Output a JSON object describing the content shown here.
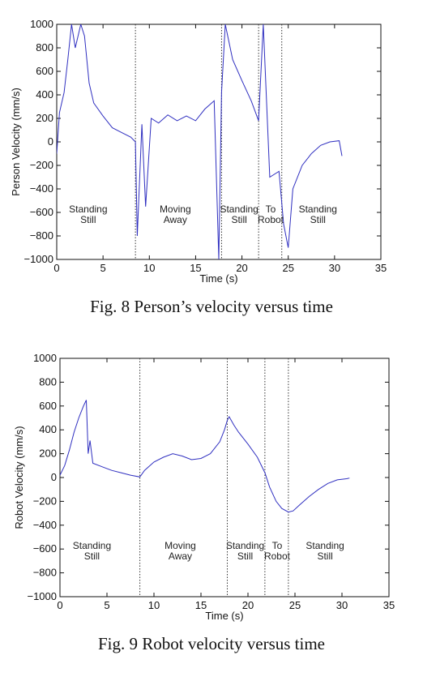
{
  "figures": [
    {
      "caption": "Fig. 8  Person’s velocity versus time",
      "chart_data": {
        "type": "line",
        "title": "",
        "xlabel": "Time (s)",
        "ylabel": "Person Velocity (mm/s)",
        "xlim": [
          0,
          35
        ],
        "ylim": [
          -1000,
          1000
        ],
        "xticks": [
          "0",
          "5",
          "10",
          "15",
          "20",
          "25",
          "30",
          "35"
        ],
        "yticks": [
          "−1000",
          "−800",
          "−600",
          "−400",
          "−200",
          "0",
          "200",
          "400",
          "600",
          "800",
          "1000"
        ],
        "grid": false,
        "line_color": "#2f2fc0",
        "event_lines_x": [
          8.5,
          17.8,
          21.8,
          24.3
        ],
        "regions": [
          {
            "lines": [
              "Standing",
              "Still"
            ],
            "x": 3.4,
            "y": -600
          },
          {
            "lines": [
              "Moving",
              "Away"
            ],
            "x": 12.8,
            "y": -600
          },
          {
            "lines": [
              "Standing",
              "Still"
            ],
            "x": 19.7,
            "y": -600
          },
          {
            "lines": [
              "To",
              "Robot"
            ],
            "x": 23.1,
            "y": -600
          },
          {
            "lines": [
              "Standing",
              "Still"
            ],
            "x": 28.2,
            "y": -600
          }
        ],
        "series": [
          {
            "values": [
              [
                0,
                -100
              ],
              [
                0.3,
                250
              ],
              [
                0.8,
                420
              ],
              [
                1.2,
                700
              ],
              [
                1.6,
                1000
              ],
              [
                2.0,
                800
              ],
              [
                2.6,
                1000
              ],
              [
                3.0,
                900
              ],
              [
                3.5,
                500
              ],
              [
                4.0,
                330
              ],
              [
                5.0,
                220
              ],
              [
                6.0,
                120
              ],
              [
                7.0,
                80
              ],
              [
                8.0,
                40
              ],
              [
                8.5,
                0
              ],
              [
                8.7,
                -800
              ],
              [
                9.2,
                150
              ],
              [
                9.6,
                -550
              ],
              [
                10.2,
                200
              ],
              [
                11.0,
                160
              ],
              [
                12.0,
                230
              ],
              [
                13.0,
                180
              ],
              [
                14.0,
                220
              ],
              [
                15.0,
                180
              ],
              [
                16.0,
                280
              ],
              [
                17.0,
                350
              ],
              [
                17.5,
                -1000
              ],
              [
                17.8,
                420
              ],
              [
                18.2,
                1000
              ],
              [
                19.0,
                700
              ],
              [
                20.0,
                520
              ],
              [
                21.0,
                350
              ],
              [
                21.8,
                180
              ],
              [
                22.3,
                1000
              ],
              [
                23.0,
                -300
              ],
              [
                24.0,
                -250
              ],
              [
                24.5,
                -700
              ],
              [
                25.0,
                -900
              ],
              [
                25.5,
                -400
              ],
              [
                26.5,
                -200
              ],
              [
                27.5,
                -100
              ],
              [
                28.5,
                -30
              ],
              [
                29.5,
                0
              ],
              [
                30.5,
                10
              ],
              [
                30.8,
                -120
              ]
            ]
          }
        ]
      }
    },
    {
      "caption": "Fig. 9  Robot velocity versus time",
      "chart_data": {
        "type": "line",
        "title": "",
        "xlabel": "Time (s)",
        "ylabel": "Robot Velocity (mm/s)",
        "xlim": [
          0,
          35
        ],
        "ylim": [
          -1000,
          1000
        ],
        "xticks": [
          "0",
          "5",
          "10",
          "15",
          "20",
          "25",
          "30",
          "35"
        ],
        "yticks": [
          "−1000",
          "−800",
          "−600",
          "−400",
          "−200",
          "0",
          "200",
          "400",
          "600",
          "800",
          "1000"
        ],
        "grid": false,
        "line_color": "#2f2fc0",
        "event_lines_x": [
          8.5,
          17.8,
          21.8,
          24.3
        ],
        "regions": [
          {
            "lines": [
              "Standing",
              "Still"
            ],
            "x": 3.4,
            "y": -600
          },
          {
            "lines": [
              "Moving",
              "Away"
            ],
            "x": 12.8,
            "y": -600
          },
          {
            "lines": [
              "Standing",
              "Still"
            ],
            "x": 19.7,
            "y": -600
          },
          {
            "lines": [
              "To",
              "Robot"
            ],
            "x": 23.1,
            "y": -600
          },
          {
            "lines": [
              "Standing",
              "Still"
            ],
            "x": 28.2,
            "y": -600
          }
        ],
        "series": [
          {
            "values": [
              [
                0,
                20
              ],
              [
                0.5,
                100
              ],
              [
                1.0,
                230
              ],
              [
                1.5,
                380
              ],
              [
                2.0,
                500
              ],
              [
                2.5,
                600
              ],
              [
                2.8,
                650
              ],
              [
                3.0,
                200
              ],
              [
                3.2,
                310
              ],
              [
                3.5,
                120
              ],
              [
                4.5,
                90
              ],
              [
                5.5,
                60
              ],
              [
                6.5,
                40
              ],
              [
                7.5,
                20
              ],
              [
                8.5,
                5
              ],
              [
                9.0,
                60
              ],
              [
                10.0,
                130
              ],
              [
                11.0,
                170
              ],
              [
                12.0,
                200
              ],
              [
                13.0,
                180
              ],
              [
                14.0,
                150
              ],
              [
                15.0,
                160
              ],
              [
                16.0,
                200
              ],
              [
                17.0,
                300
              ],
              [
                17.5,
                400
              ],
              [
                17.8,
                480
              ],
              [
                18.0,
                510
              ],
              [
                18.5,
                440
              ],
              [
                19.0,
                380
              ],
              [
                20.0,
                280
              ],
              [
                21.0,
                170
              ],
              [
                21.8,
                40
              ],
              [
                22.3,
                -80
              ],
              [
                23.0,
                -200
              ],
              [
                23.6,
                -260
              ],
              [
                24.3,
                -290
              ],
              [
                24.8,
                -280
              ],
              [
                25.5,
                -230
              ],
              [
                26.5,
                -160
              ],
              [
                27.5,
                -100
              ],
              [
                28.5,
                -50
              ],
              [
                29.5,
                -20
              ],
              [
                30.5,
                -10
              ],
              [
                30.8,
                -5
              ]
            ]
          }
        ]
      }
    }
  ]
}
